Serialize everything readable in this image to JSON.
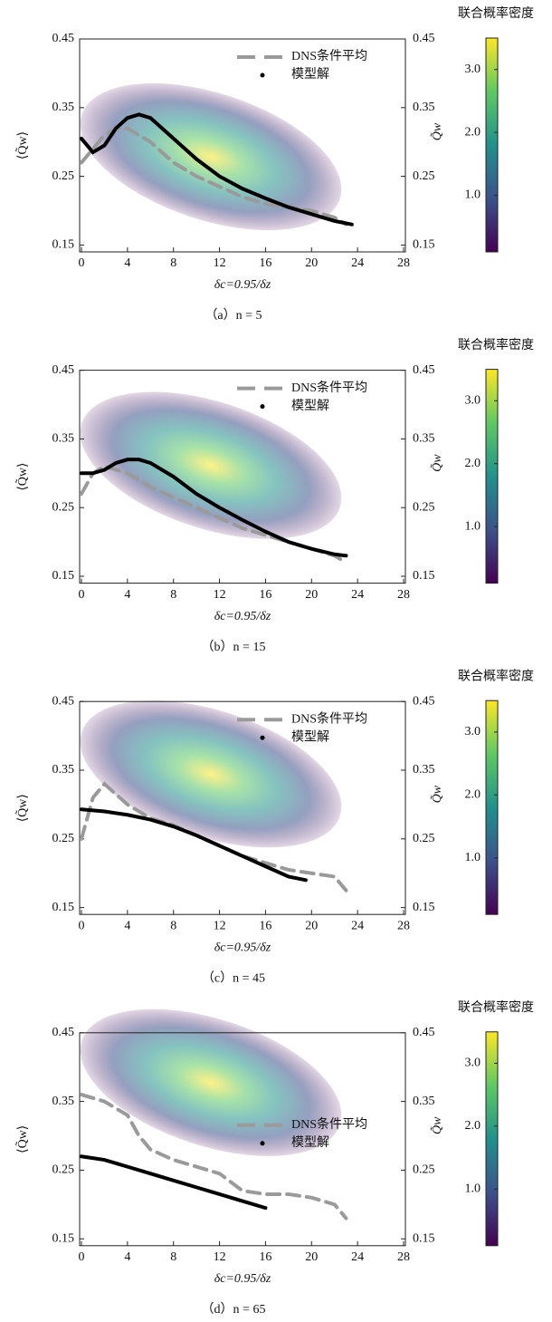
{
  "chart_data": [
    {
      "type": "line",
      "caption": "（a）n = 5",
      "xlabel": "δc=0.95/δz",
      "ylabel": "⟨Q̃w⟩",
      "xlim": [
        0,
        28
      ],
      "xticks": [
        0,
        4,
        8,
        12,
        16,
        20,
        24,
        28
      ],
      "ylim": [
        0.14,
        0.45
      ],
      "yticks": [
        0.15,
        0.25,
        0.35,
        0.45
      ],
      "y2lim": [
        0.14,
        0.45
      ],
      "y2ticks": [
        0.15,
        0.25,
        0.35,
        0.45
      ],
      "legend": "upper right",
      "series": [
        {
          "name": "DNS条件平均",
          "color": "#9a9a9a",
          "style": "dashed",
          "x": [
            0,
            1,
            2,
            3,
            4,
            6,
            8,
            10,
            12,
            14,
            16,
            18,
            20,
            22,
            23
          ],
          "values": [
            0.27,
            0.29,
            0.31,
            0.32,
            0.32,
            0.3,
            0.27,
            0.25,
            0.235,
            0.22,
            0.21,
            0.205,
            0.2,
            0.19,
            0.18
          ]
        },
        {
          "name": "模型解",
          "color": "#000000",
          "style": "solid",
          "x": [
            0,
            1,
            2,
            3,
            4,
            5,
            6,
            8,
            10,
            12,
            14,
            16,
            18,
            20,
            22,
            23.5
          ],
          "values": [
            0.305,
            0.285,
            0.295,
            0.32,
            0.335,
            0.34,
            0.335,
            0.305,
            0.275,
            0.25,
            0.232,
            0.218,
            0.205,
            0.195,
            0.185,
            0.18
          ]
        }
      ],
      "colorbar": {
        "title": "联合概率密度",
        "label": "Q̃w",
        "lim": [
          0.1,
          3.5
        ],
        "ticks": [
          {
            "value": 1,
            "label": "1.0"
          },
          {
            "value": 2,
            "label": "2.0"
          },
          {
            "value": 3,
            "label": "3.0"
          }
        ],
        "colors": [
          "#440154",
          "#3b528b",
          "#21918c",
          "#5ec962",
          "#fde725"
        ]
      }
    },
    {
      "type": "line",
      "caption": "（b）n = 15",
      "xlabel": "δc=0.95/δz",
      "ylabel": "⟨Q̃w⟩",
      "xlim": [
        0,
        28
      ],
      "xticks": [
        0,
        4,
        8,
        12,
        16,
        20,
        24,
        28
      ],
      "ylim": [
        0.14,
        0.45
      ],
      "yticks": [
        0.15,
        0.25,
        0.35,
        0.45
      ],
      "y2lim": [
        0.14,
        0.45
      ],
      "y2ticks": [
        0.15,
        0.25,
        0.35,
        0.45
      ],
      "legend": "upper right",
      "series": [
        {
          "name": "DNS条件平均",
          "color": "#9a9a9a",
          "style": "dashed",
          "x": [
            0,
            1,
            2,
            4,
            6,
            8,
            10,
            12,
            14,
            16,
            18,
            20,
            22,
            23
          ],
          "values": [
            0.27,
            0.3,
            0.31,
            0.3,
            0.28,
            0.265,
            0.25,
            0.235,
            0.22,
            0.21,
            0.2,
            0.19,
            0.18,
            0.17
          ]
        },
        {
          "name": "模型解",
          "color": "#000000",
          "style": "solid",
          "x": [
            0,
            1,
            2,
            3,
            4,
            5,
            6,
            8,
            10,
            12,
            14,
            16,
            18,
            20,
            22,
            23
          ],
          "values": [
            0.3,
            0.3,
            0.305,
            0.315,
            0.32,
            0.32,
            0.315,
            0.295,
            0.27,
            0.25,
            0.232,
            0.215,
            0.2,
            0.19,
            0.182,
            0.18
          ]
        }
      ],
      "colorbar": {
        "title": "联合概率密度",
        "label": "Q̃w",
        "lim": [
          0.1,
          3.5
        ],
        "ticks": [
          {
            "value": 1,
            "label": "1.0"
          },
          {
            "value": 2,
            "label": "2.0"
          },
          {
            "value": 3,
            "label": "3.0"
          }
        ],
        "colors": [
          "#440154",
          "#3b528b",
          "#21918c",
          "#5ec962",
          "#fde725"
        ]
      }
    },
    {
      "type": "line",
      "caption": "（c）n = 45",
      "xlabel": "δc=0.95/δz",
      "ylabel": "⟨Q̃w⟩",
      "xlim": [
        0,
        28
      ],
      "xticks": [
        0,
        4,
        8,
        12,
        16,
        20,
        24,
        28
      ],
      "ylim": [
        0.14,
        0.45
      ],
      "yticks": [
        0.15,
        0.25,
        0.35,
        0.45
      ],
      "y2lim": [
        0.14,
        0.45
      ],
      "y2ticks": [
        0.15,
        0.25,
        0.35,
        0.45
      ],
      "legend": "upper right",
      "series": [
        {
          "name": "DNS条件平均",
          "color": "#9a9a9a",
          "style": "dashed",
          "x": [
            0,
            1,
            2,
            4,
            6,
            8,
            10,
            12,
            14,
            16,
            18,
            20,
            22,
            23
          ],
          "values": [
            0.25,
            0.31,
            0.33,
            0.3,
            0.28,
            0.27,
            0.255,
            0.24,
            0.225,
            0.215,
            0.205,
            0.2,
            0.195,
            0.175
          ]
        },
        {
          "name": "模型解",
          "color": "#000000",
          "style": "solid",
          "x": [
            0,
            2,
            4,
            6,
            8,
            10,
            12,
            14,
            16,
            18,
            19.5
          ],
          "values": [
            0.293,
            0.29,
            0.285,
            0.278,
            0.268,
            0.255,
            0.24,
            0.225,
            0.21,
            0.195,
            0.19
          ]
        }
      ],
      "colorbar": {
        "title": "联合概率密度",
        "label": "Q̃w",
        "lim": [
          0.1,
          3.5
        ],
        "ticks": [
          {
            "value": 1,
            "label": "1.0"
          },
          {
            "value": 2,
            "label": "2.0"
          },
          {
            "value": 3,
            "label": "3.0"
          }
        ],
        "colors": [
          "#440154",
          "#3b528b",
          "#21918c",
          "#5ec962",
          "#fde725"
        ]
      }
    },
    {
      "type": "line",
      "caption": "（d）n = 65",
      "xlabel": "δc=0.95/δz",
      "ylabel": "⟨Q̃w⟩",
      "xlim": [
        0,
        28
      ],
      "xticks": [
        0,
        4,
        8,
        12,
        16,
        20,
        24,
        28
      ],
      "ylim": [
        0.14,
        0.45
      ],
      "yticks": [
        0.15,
        0.25,
        0.35,
        0.45
      ],
      "y2lim": [
        0.14,
        0.45
      ],
      "y2ticks": [
        0.15,
        0.25,
        0.35,
        0.45
      ],
      "legend": "center right",
      "series": [
        {
          "name": "DNS条件平均",
          "color": "#9a9a9a",
          "style": "dashed",
          "x": [
            0,
            2,
            4,
            5,
            6,
            8,
            10,
            12,
            14,
            16,
            18,
            20,
            22,
            23
          ],
          "values": [
            0.36,
            0.35,
            0.33,
            0.3,
            0.28,
            0.265,
            0.255,
            0.245,
            0.22,
            0.215,
            0.215,
            0.21,
            0.2,
            0.18
          ]
        },
        {
          "name": "模型解",
          "color": "#000000",
          "style": "solid",
          "x": [
            0,
            2,
            4,
            6,
            8,
            10,
            12,
            14,
            16
          ],
          "values": [
            0.27,
            0.265,
            0.255,
            0.245,
            0.235,
            0.225,
            0.215,
            0.205,
            0.195
          ]
        }
      ],
      "colorbar": {
        "title": "联合概率密度",
        "label": "Q̃w",
        "lim": [
          0.1,
          3.5
        ],
        "ticks": [
          {
            "value": 1,
            "label": "1.0"
          },
          {
            "value": 2,
            "label": "2.0"
          },
          {
            "value": 3,
            "label": "3.0"
          }
        ],
        "colors": [
          "#440154",
          "#3b528b",
          "#21918c",
          "#5ec962",
          "#fde725"
        ]
      }
    }
  ]
}
